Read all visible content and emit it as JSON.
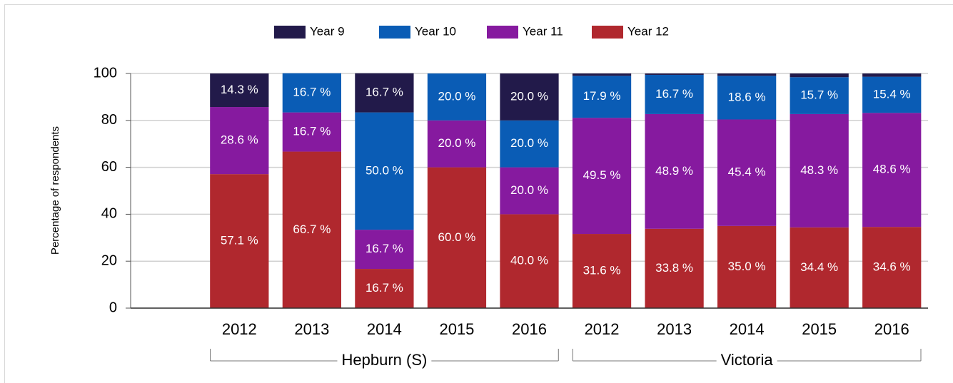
{
  "chart_data": {
    "type": "stacked_bar",
    "y_label": "Percentage of respondents",
    "categories": [
      "2012",
      "2013",
      "2014",
      "2015",
      "2016",
      "2012",
      "2013",
      "2014",
      "2015",
      "2016"
    ],
    "groups": [
      "Hepburn (S)",
      "Victoria"
    ],
    "ylim": [
      0,
      100
    ],
    "yticks": [
      0,
      20,
      40,
      60,
      80,
      100
    ],
    "grid": true,
    "legend": "top",
    "series": [
      {
        "name": "Year 9",
        "color": "#221a4a",
        "values": [
          14.3,
          0,
          16.7,
          0,
          20.0,
          1.0,
          0.6,
          1.0,
          1.6,
          1.4
        ],
        "value_labels": [
          "14.3 %",
          null,
          "16.7 %",
          null,
          "20.0 %",
          null,
          null,
          null,
          null,
          null
        ]
      },
      {
        "name": "Year 10",
        "color": "#0a5cb5",
        "values": [
          0,
          16.7,
          50.0,
          20.0,
          20.0,
          17.9,
          16.7,
          18.6,
          15.7,
          15.4
        ],
        "value_labels": [
          null,
          "16.7 %",
          "50.0 %",
          "20.0 %",
          "20.0 %",
          "17.9 %",
          "16.7 %",
          "18.6 %",
          "15.7 %",
          "15.4 %"
        ]
      },
      {
        "name": "Year 11",
        "color": "#861a9f",
        "values": [
          28.6,
          16.7,
          16.7,
          20.0,
          20.0,
          49.5,
          48.9,
          45.4,
          48.3,
          48.6
        ],
        "value_labels": [
          "28.6 %",
          "16.7 %",
          "16.7 %",
          "20.0 %",
          "20.0 %",
          "49.5 %",
          "48.9 %",
          "45.4 %",
          "48.3 %",
          "48.6 %"
        ]
      },
      {
        "name": "Year 12",
        "color": "#b0282e",
        "values": [
          57.1,
          66.7,
          16.7,
          60.0,
          40.0,
          31.6,
          33.8,
          35.0,
          34.4,
          34.6
        ],
        "value_labels": [
          "57.1 %",
          "66.7 %",
          "16.7 %",
          "60.0 %",
          "40.0 %",
          "31.6 %",
          "33.8 %",
          "35.0 %",
          "34.4 %",
          "34.6 %"
        ]
      }
    ]
  }
}
